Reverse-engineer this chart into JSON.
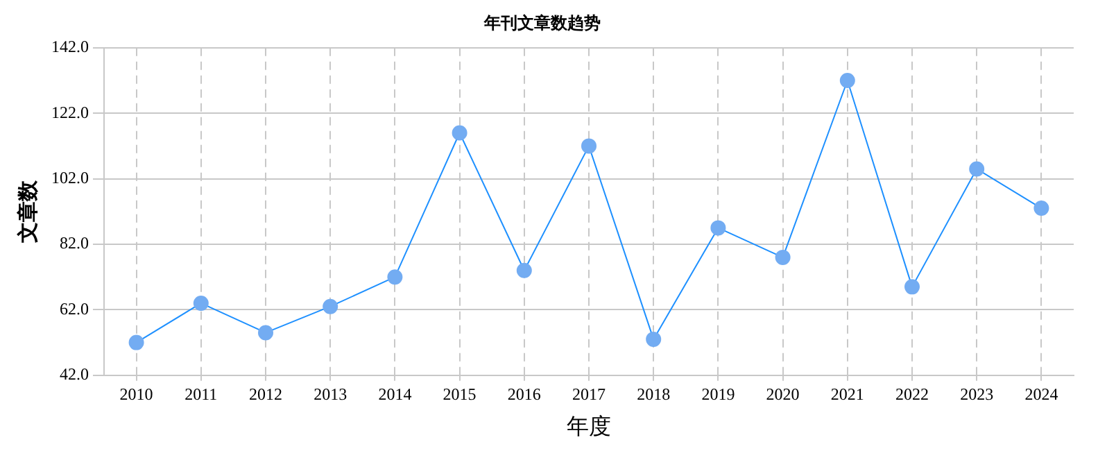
{
  "chart_data": {
    "type": "line",
    "title": "年刊文章数趋势",
    "xlabel": "年度",
    "ylabel": "文章数",
    "categories": [
      "2010",
      "2011",
      "2012",
      "2013",
      "2014",
      "2015",
      "2016",
      "2017",
      "2018",
      "2019",
      "2020",
      "2021",
      "2022",
      "2023",
      "2024"
    ],
    "series": [
      {
        "color": "#1e90ff",
        "values": [
          52,
          64,
          55,
          63,
          72,
          116,
          74,
          112,
          53,
          87,
          78,
          132,
          69,
          105,
          93
        ]
      }
    ],
    "ylim": [
      42,
      142
    ],
    "yticks": [
      {
        "value": 42,
        "label": "42.0"
      },
      {
        "value": 62,
        "label": "62.0"
      },
      {
        "value": 82,
        "label": "82.0"
      },
      {
        "value": 102,
        "label": "102.0"
      },
      {
        "value": 122,
        "label": "122.0"
      },
      {
        "value": 142,
        "label": "142.0"
      }
    ],
    "grid": true,
    "legend": false,
    "marker": "circle",
    "line_style": "solid"
  }
}
